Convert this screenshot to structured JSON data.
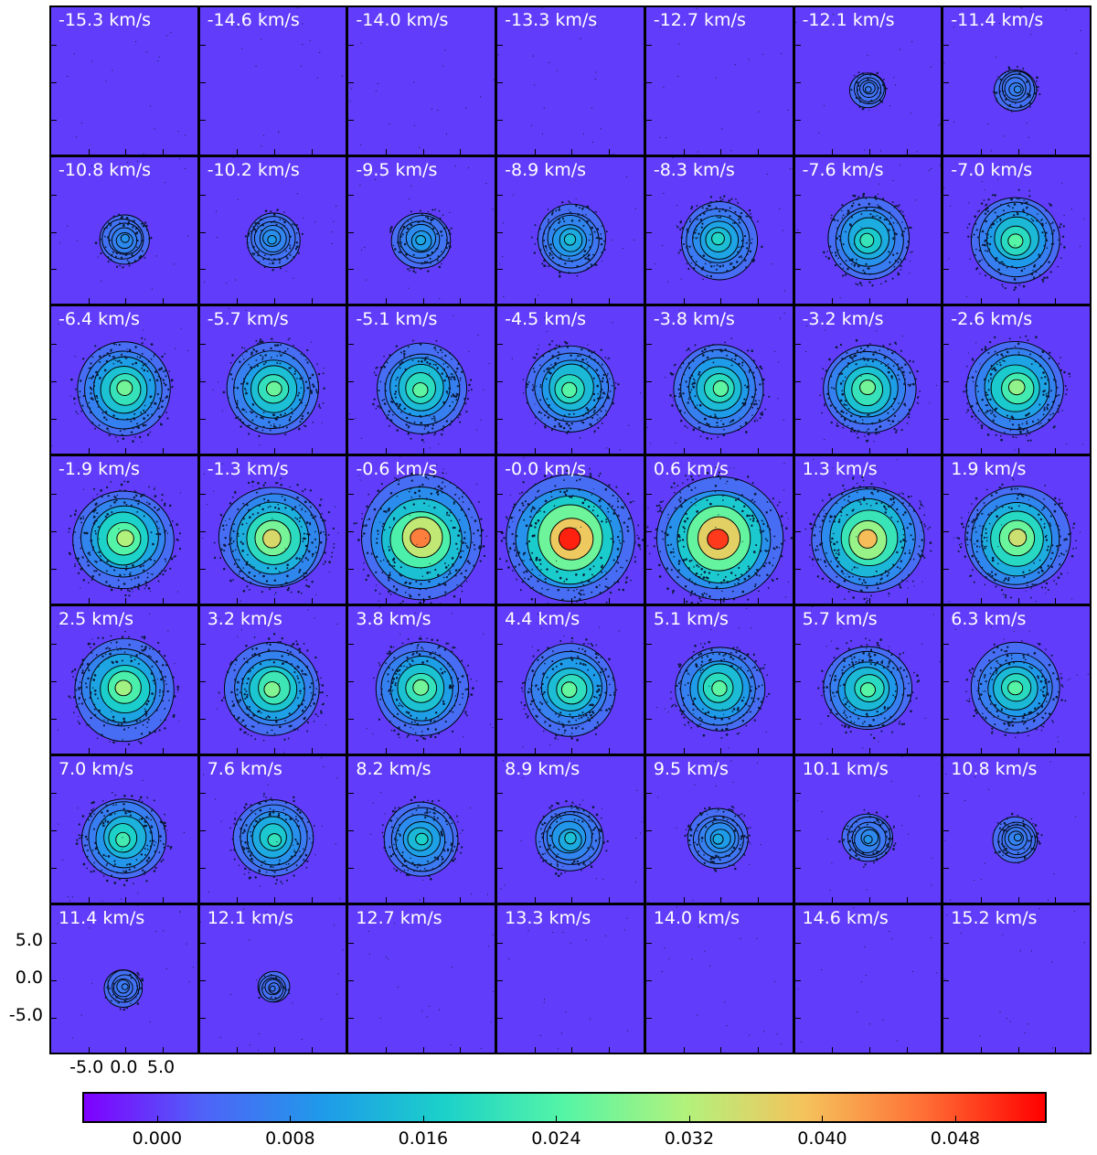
{
  "chart_data": {
    "type": "heatmap",
    "layout": "channel map grid, 7 columns x 7 rows",
    "colormap": "rainbow",
    "contours": true,
    "panels": [
      {
        "label": "-15.3 km/s",
        "velocity": -15.3,
        "emission": 0.0
      },
      {
        "label": "-14.6 km/s",
        "velocity": -14.6,
        "emission": 0.0
      },
      {
        "label": "-14.0 km/s",
        "velocity": -14.0,
        "emission": 0.0
      },
      {
        "label": "-13.3 km/s",
        "velocity": -13.3,
        "emission": 0.0
      },
      {
        "label": "-12.7 km/s",
        "velocity": -12.7,
        "emission": 0.0
      },
      {
        "label": "-12.1 km/s",
        "velocity": -12.1,
        "emission": 0.12
      },
      {
        "label": "-11.4 km/s",
        "velocity": -11.4,
        "emission": 0.18
      },
      {
        "label": "-10.8 km/s",
        "velocity": -10.8,
        "emission": 0.25
      },
      {
        "label": "-10.2 km/s",
        "velocity": -10.2,
        "emission": 0.28
      },
      {
        "label": "-9.5 km/s",
        "velocity": -9.5,
        "emission": 0.34
      },
      {
        "label": "-8.9 km/s",
        "velocity": -8.9,
        "emission": 0.42
      },
      {
        "label": "-8.3 km/s",
        "velocity": -8.3,
        "emission": 0.5
      },
      {
        "label": "-7.6 km/s",
        "velocity": -7.6,
        "emission": 0.55
      },
      {
        "label": "-7.0 km/s",
        "velocity": -7.0,
        "emission": 0.62
      },
      {
        "label": "-6.4 km/s",
        "velocity": -6.4,
        "emission": 0.66
      },
      {
        "label": "-5.7 km/s",
        "velocity": -5.7,
        "emission": 0.65
      },
      {
        "label": "-5.1 km/s",
        "velocity": -5.1,
        "emission": 0.63
      },
      {
        "label": "-4.5 km/s",
        "velocity": -4.5,
        "emission": 0.62
      },
      {
        "label": "-3.8 km/s",
        "velocity": -3.8,
        "emission": 0.63
      },
      {
        "label": "-3.2 km/s",
        "velocity": -3.2,
        "emission": 0.66
      },
      {
        "label": "-2.6 km/s",
        "velocity": -2.6,
        "emission": 0.7
      },
      {
        "label": "-1.9 km/s",
        "velocity": -1.9,
        "emission": 0.74
      },
      {
        "label": "-1.3 km/s",
        "velocity": -1.3,
        "emission": 0.8
      },
      {
        "label": "-0.6 km/s",
        "velocity": -0.6,
        "emission": 0.92
      },
      {
        "label": "-0.0 km/s",
        "velocity": -0.0,
        "emission": 1.0
      },
      {
        "label": "0.6 km/s",
        "velocity": 0.6,
        "emission": 0.98
      },
      {
        "label": "1.3 km/s",
        "velocity": 1.3,
        "emission": 0.85
      },
      {
        "label": "1.9 km/s",
        "velocity": 1.9,
        "emission": 0.78
      },
      {
        "label": "2.5 km/s",
        "velocity": 2.5,
        "emission": 0.72
      },
      {
        "label": "3.2 km/s",
        "velocity": 3.2,
        "emission": 0.68
      },
      {
        "label": "3.8 km/s",
        "velocity": 3.8,
        "emission": 0.66
      },
      {
        "label": "4.4 km/s",
        "velocity": 4.4,
        "emission": 0.64
      },
      {
        "label": "5.1 km/s",
        "velocity": 5.1,
        "emission": 0.63
      },
      {
        "label": "5.7 km/s",
        "velocity": 5.7,
        "emission": 0.62
      },
      {
        "label": "6.3 km/s",
        "velocity": 6.3,
        "emission": 0.62
      },
      {
        "label": "7.0 km/s",
        "velocity": 7.0,
        "emission": 0.58
      },
      {
        "label": "7.6 km/s",
        "velocity": 7.6,
        "emission": 0.54
      },
      {
        "label": "8.2 km/s",
        "velocity": 8.2,
        "emission": 0.48
      },
      {
        "label": "8.9 km/s",
        "velocity": 8.9,
        "emission": 0.42
      },
      {
        "label": "9.5 km/s",
        "velocity": 9.5,
        "emission": 0.35
      },
      {
        "label": "10.1 km/s",
        "velocity": 10.1,
        "emission": 0.26
      },
      {
        "label": "10.8 km/s",
        "velocity": 10.8,
        "emission": 0.2
      },
      {
        "label": "11.4 km/s",
        "velocity": 11.4,
        "emission": 0.14
      },
      {
        "label": "12.1 km/s",
        "velocity": 12.1,
        "emission": 0.08
      },
      {
        "label": "12.7 km/s",
        "velocity": 12.7,
        "emission": 0.0
      },
      {
        "label": "13.3 km/s",
        "velocity": 13.3,
        "emission": 0.0
      },
      {
        "label": "14.0 km/s",
        "velocity": 14.0,
        "emission": 0.0
      },
      {
        "label": "14.6 km/s",
        "velocity": 14.6,
        "emission": 0.0
      },
      {
        "label": "15.2 km/s",
        "velocity": 15.2,
        "emission": 0.0
      }
    ],
    "axes": {
      "x_tick_labels": [
        "-5.0",
        "0.0",
        "5.0"
      ],
      "y_tick_labels": [
        "5.0",
        "0.0",
        "-5.0"
      ],
      "x_ticks": [
        -5.0,
        0.0,
        5.0
      ],
      "y_ticks": [
        5.0,
        0.0,
        -5.0
      ],
      "xlim": [
        -10.0,
        10.0
      ],
      "ylim": [
        -10.0,
        10.0
      ],
      "xlabel": "",
      "ylabel": ""
    },
    "colorbar": {
      "orientation": "horizontal",
      "range": [
        -0.0045,
        0.0535
      ],
      "tick_values": [
        0.0,
        0.008,
        0.016,
        0.024,
        0.032,
        0.04,
        0.048
      ],
      "tick_labels": [
        "0.000",
        "0.008",
        "0.016",
        "0.024",
        "0.032",
        "0.040",
        "0.048"
      ]
    },
    "colors": {
      "background": "#4a6cf2",
      "colormap_stops": [
        "#7f00ff",
        "#4f63f8",
        "#1e9be9",
        "#1bd1c9",
        "#55f5a6",
        "#b1f27c",
        "#f5c35c",
        "#ff6e35",
        "#ff0000"
      ],
      "contour": "#000000",
      "label_text": "#ffffff"
    }
  }
}
